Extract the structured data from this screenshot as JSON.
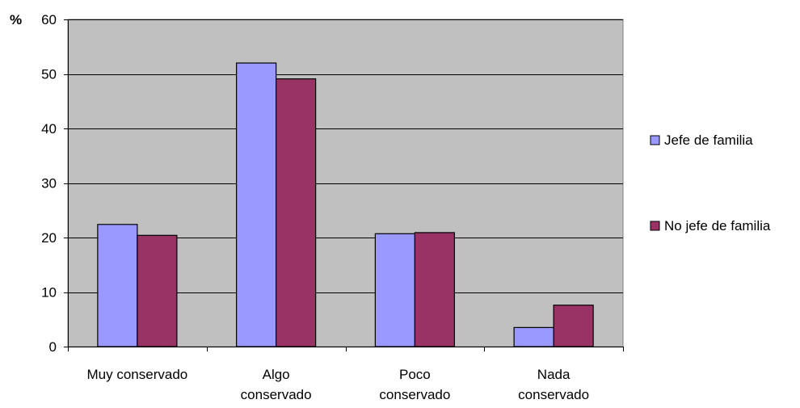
{
  "chart_data": {
    "type": "bar",
    "ylabel": "%",
    "ylim": [
      0,
      60
    ],
    "yticks": [
      0,
      10,
      20,
      30,
      40,
      50,
      60
    ],
    "grid": true,
    "legend_position": "right",
    "categories": [
      [
        "Muy conservado"
      ],
      [
        "Algo",
        "conservado"
      ],
      [
        "Poco",
        "conservado"
      ],
      [
        "Nada",
        "conservado"
      ]
    ],
    "series": [
      {
        "name": "Jefe de familia",
        "color": "#9999ff",
        "values": [
          22.4,
          52.0,
          20.7,
          3.5
        ]
      },
      {
        "name": "No jefe de familia",
        "color": "#993366",
        "values": [
          20.4,
          49.1,
          20.9,
          7.6
        ]
      }
    ],
    "plot_background": "#c0c0c0",
    "gridline_color": "#000000"
  }
}
